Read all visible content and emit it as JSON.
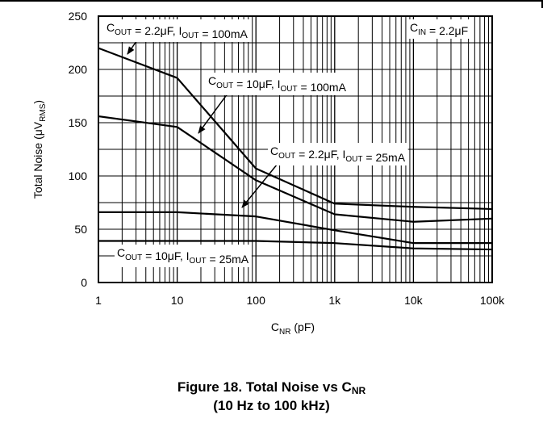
{
  "chart_data": {
    "type": "line",
    "xscale": "log",
    "xlim": [
      1,
      100000
    ],
    "ylim": [
      0,
      250
    ],
    "grid": true,
    "xticks": [
      {
        "value": 1,
        "label": "1"
      },
      {
        "value": 10,
        "label": "10"
      },
      {
        "value": 100,
        "label": "100"
      },
      {
        "value": 1000,
        "label": "1k"
      },
      {
        "value": 10000,
        "label": "10k"
      },
      {
        "value": 100000,
        "label": "100k"
      }
    ],
    "yticks": [
      {
        "value": 0,
        "label": "0"
      },
      {
        "value": 50,
        "label": "50"
      },
      {
        "value": 100,
        "label": "100"
      },
      {
        "value": 150,
        "label": "150"
      },
      {
        "value": 200,
        "label": "200"
      },
      {
        "value": 250,
        "label": "250"
      }
    ],
    "xlabel": {
      "main": "C",
      "sub": "NR",
      "rest": " (pF)"
    },
    "ylabel": {
      "main": "Total Noise (μV",
      "sub": "RMS",
      "rest": ")"
    },
    "series": [
      {
        "name": "COUT = 2.2μF, IOUT = 100mA",
        "x": [
          1,
          10,
          100,
          1000,
          10000,
          100000
        ],
        "y": [
          220,
          192,
          107,
          74,
          71,
          69
        ]
      },
      {
        "name": "COUT = 10μF, IOUT = 100mA",
        "x": [
          1,
          10,
          100,
          1000,
          10000,
          100000
        ],
        "y": [
          156,
          146,
          96,
          64,
          57,
          60
        ]
      },
      {
        "name": "COUT = 2.2μF, IOUT = 25mA",
        "x": [
          1,
          10,
          100,
          1000,
          10000,
          100000
        ],
        "y": [
          66,
          66,
          62,
          49,
          37,
          37
        ]
      },
      {
        "name": "COUT = 10μF, IOUT = 25mA",
        "x": [
          1,
          10,
          100,
          1000,
          10000,
          100000
        ],
        "y": [
          39,
          39,
          39,
          37,
          32,
          31
        ]
      }
    ],
    "annotations": {
      "cin": {
        "main": "C",
        "sub": "IN",
        "rest": " = 2.2μF"
      },
      "a1": [
        {
          "t": "C"
        },
        {
          "t": "OUT",
          "sub": true
        },
        {
          "t": " = 2.2μF, I"
        },
        {
          "t": "OUT",
          "sub": true
        },
        {
          "t": " = 100mA"
        }
      ],
      "a2": [
        {
          "t": "C"
        },
        {
          "t": "OUT",
          "sub": true
        },
        {
          "t": " = 10μF, I"
        },
        {
          "t": "OUT",
          "sub": true
        },
        {
          "t": " = 100mA"
        }
      ],
      "a3": [
        {
          "t": "C"
        },
        {
          "t": "OUT",
          "sub": true
        },
        {
          "t": " = 2.2μF, I"
        },
        {
          "t": "OUT",
          "sub": true
        },
        {
          "t": " = 25mA"
        }
      ],
      "a4": [
        {
          "t": "C"
        },
        {
          "t": "OUT",
          "sub": true
        },
        {
          "t": " = 10μF, I"
        },
        {
          "t": "OUT",
          "sub": true
        },
        {
          "t": " = 25mA"
        }
      ]
    }
  },
  "caption": {
    "line1_main": "Figure 18. Total Noise vs C",
    "line1_sub": "NR",
    "line2": "(10 Hz to 100 kHz)"
  }
}
